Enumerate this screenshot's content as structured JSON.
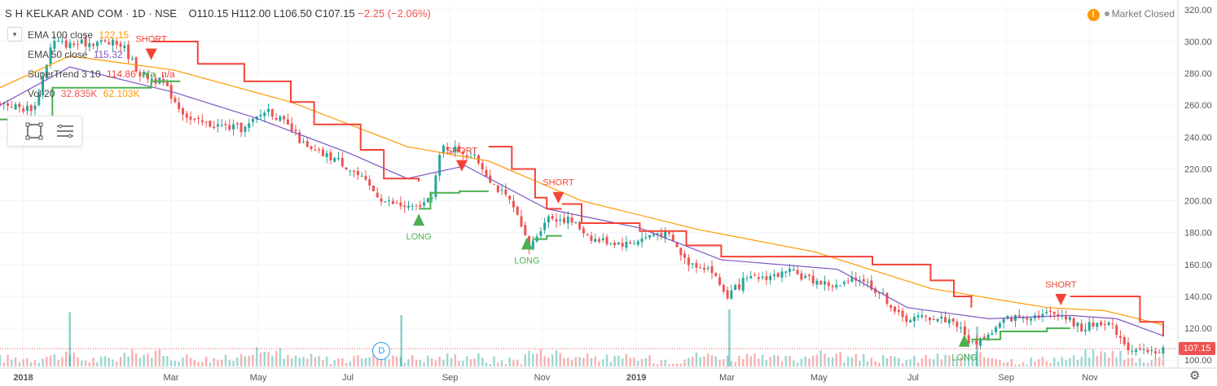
{
  "header": {
    "symbol": "S H KELKAR AND COM",
    "interval": "1D",
    "exchange": "NSE",
    "open": "O110.15",
    "high": "H112.00",
    "low": "L106.50",
    "close": "C107.15",
    "change": "−2.25 (−2.06%)"
  },
  "market_status": "Market Closed",
  "collapse_icon": "chevron-down-icon",
  "legend": {
    "ema100": {
      "label": "EMA 100 close",
      "value": "122.15",
      "color": "#ff9800"
    },
    "ema50": {
      "label": "EMA 50 close",
      "value": "115.32",
      "color": "#7e57c2"
    },
    "supertrend": {
      "label": "SuperTrend 3 10",
      "value": "114.86",
      "na1": "n/a",
      "na2": "n/a",
      "color_up": "#4caf50",
      "color_down": "#f44336"
    },
    "volume": {
      "label": "Vol 20",
      "value1": "32.835K",
      "value2": "62.103K"
    }
  },
  "toolbox": {
    "icon1": "square-select-icon",
    "icon2": "list-lines-icon"
  },
  "price_tag": "107.15",
  "settings_icon": "gear-icon",
  "dividend_badge": "D",
  "chart_data": {
    "type": "candlestick",
    "ylim": [
      95,
      323
    ],
    "y_ticks": [
      100,
      120,
      140,
      160,
      180,
      200,
      220,
      240,
      260,
      280,
      300,
      320
    ],
    "y_tick_labels": [
      "100.00",
      "120.00",
      "140.00",
      "160.00",
      "180.00",
      "200.00",
      "220.00",
      "240.00",
      "260.00",
      "280.00",
      "300.00",
      "320.00"
    ],
    "x_tick_labels": [
      {
        "label": "2018",
        "t": 0.02
      },
      {
        "label": "Mar",
        "t": 0.147
      },
      {
        "label": "May",
        "t": 0.222
      },
      {
        "label": "Jul",
        "t": 0.299
      },
      {
        "label": "Sep",
        "t": 0.387
      },
      {
        "label": "Nov",
        "t": 0.466
      },
      {
        "label": "2019",
        "t": 0.547
      },
      {
        "label": "Mar",
        "t": 0.625
      },
      {
        "label": "May",
        "t": 0.704
      },
      {
        "label": "Jul",
        "t": 0.785
      },
      {
        "label": "Sep",
        "t": 0.865
      },
      {
        "label": "Nov",
        "t": 0.937
      }
    ],
    "close_path": [
      [
        0.0,
        262
      ],
      [
        0.02,
        258
      ],
      [
        0.03,
        259
      ],
      [
        0.045,
        300
      ],
      [
        0.06,
        298
      ],
      [
        0.085,
        300
      ],
      [
        0.105,
        298
      ],
      [
        0.12,
        280
      ],
      [
        0.14,
        274
      ],
      [
        0.155,
        258
      ],
      [
        0.165,
        250
      ],
      [
        0.19,
        247
      ],
      [
        0.21,
        245
      ],
      [
        0.23,
        258
      ],
      [
        0.25,
        245
      ],
      [
        0.265,
        232
      ],
      [
        0.29,
        226
      ],
      [
        0.305,
        218
      ],
      [
        0.33,
        200
      ],
      [
        0.355,
        195
      ],
      [
        0.37,
        200
      ],
      [
        0.38,
        234
      ],
      [
        0.395,
        232
      ],
      [
        0.41,
        226
      ],
      [
        0.425,
        210
      ],
      [
        0.44,
        198
      ],
      [
        0.455,
        170
      ],
      [
        0.47,
        190
      ],
      [
        0.49,
        188
      ],
      [
        0.51,
        176
      ],
      [
        0.54,
        173
      ],
      [
        0.565,
        180
      ],
      [
        0.575,
        178
      ],
      [
        0.59,
        162
      ],
      [
        0.61,
        158
      ],
      [
        0.625,
        140
      ],
      [
        0.64,
        150
      ],
      [
        0.655,
        152
      ],
      [
        0.68,
        155
      ],
      [
        0.7,
        150
      ],
      [
        0.72,
        146
      ],
      [
        0.74,
        152
      ],
      [
        0.76,
        140
      ],
      [
        0.775,
        126
      ],
      [
        0.8,
        127
      ],
      [
        0.82,
        125
      ],
      [
        0.835,
        110
      ],
      [
        0.85,
        116
      ],
      [
        0.865,
        126
      ],
      [
        0.885,
        128
      ],
      [
        0.91,
        130
      ],
      [
        0.93,
        120
      ],
      [
        0.95,
        125
      ],
      [
        0.96,
        118
      ],
      [
        0.97,
        108
      ],
      [
        0.985,
        104
      ],
      [
        1.0,
        107.15
      ]
    ],
    "series": [
      {
        "name": "EMA 100 close",
        "color": "#ff9800",
        "values": [
          [
            0.0,
            271
          ],
          [
            0.06,
            291
          ],
          [
            0.15,
            282
          ],
          [
            0.25,
            262
          ],
          [
            0.35,
            234
          ],
          [
            0.42,
            225
          ],
          [
            0.5,
            200
          ],
          [
            0.6,
            182
          ],
          [
            0.7,
            168
          ],
          [
            0.8,
            145
          ],
          [
            0.9,
            133
          ],
          [
            0.95,
            131
          ],
          [
            1.0,
            122.15
          ]
        ]
      },
      {
        "name": "EMA 50 close",
        "color": "#7e57c2",
        "values": [
          [
            0.0,
            260
          ],
          [
            0.06,
            284
          ],
          [
            0.15,
            268
          ],
          [
            0.22,
            252
          ],
          [
            0.3,
            230
          ],
          [
            0.35,
            214
          ],
          [
            0.4,
            222
          ],
          [
            0.47,
            195
          ],
          [
            0.55,
            183
          ],
          [
            0.62,
            163
          ],
          [
            0.72,
            157
          ],
          [
            0.78,
            133
          ],
          [
            0.85,
            126
          ],
          [
            0.92,
            128
          ],
          [
            0.96,
            126
          ],
          [
            1.0,
            115.32
          ]
        ]
      },
      {
        "name": "SuperTrend 3 10",
        "color_up": "#4caf50",
        "color_down": "#f44336",
        "segments": [
          {
            "dir": "up",
            "values": [
              [
                0.0,
                251
              ],
              [
                0.03,
                251
              ],
              [
                0.045,
                271
              ],
              [
                0.13,
                275
              ],
              [
                0.155,
                275
              ]
            ]
          },
          {
            "dir": "down",
            "values": [
              [
                0.13,
                300
              ],
              [
                0.17,
                286
              ],
              [
                0.21,
                275
              ],
              [
                0.25,
                262
              ],
              [
                0.27,
                248
              ],
              [
                0.31,
                232
              ],
              [
                0.33,
                214
              ],
              [
                0.36,
                212
              ]
            ]
          },
          {
            "dir": "up",
            "values": [
              [
                0.36,
                195
              ],
              [
                0.37,
                205
              ],
              [
                0.395,
                206
              ],
              [
                0.42,
                206
              ]
            ]
          },
          {
            "dir": "down",
            "values": [
              [
                0.42,
                234
              ],
              [
                0.44,
                220
              ],
              [
                0.46,
                202
              ],
              [
                0.47,
                195
              ],
              [
                0.483,
                195
              ]
            ]
          },
          {
            "dir": "up",
            "values": [
              [
                0.458,
                176
              ],
              [
                0.47,
                178
              ],
              [
                0.483,
                178
              ]
            ]
          },
          {
            "dir": "down",
            "values": [
              [
                0.483,
                198
              ],
              [
                0.5,
                186
              ],
              [
                0.55,
                181
              ],
              [
                0.59,
                172
              ],
              [
                0.62,
                165
              ],
              [
                0.7,
                165
              ],
              [
                0.75,
                160
              ],
              [
                0.8,
                150
              ],
              [
                0.82,
                140
              ],
              [
                0.835,
                133
              ]
            ]
          },
          {
            "dir": "up",
            "values": [
              [
                0.835,
                113
              ],
              [
                0.86,
                118
              ],
              [
                0.9,
                120
              ],
              [
                0.92,
                120
              ]
            ]
          },
          {
            "dir": "down",
            "values": [
              [
                0.92,
                140
              ],
              [
                0.96,
                140
              ],
              [
                0.98,
                124
              ],
              [
                1.0,
                114.86
              ]
            ]
          }
        ]
      }
    ],
    "signals": [
      {
        "label": "SHORT",
        "t": 0.13,
        "price": 292,
        "dir": "down"
      },
      {
        "label": "SHORT",
        "t": 0.397,
        "price": 222,
        "dir": "down"
      },
      {
        "label": "LONG",
        "t": 0.36,
        "price": 188,
        "dir": "up"
      },
      {
        "label": "SHORT",
        "t": 0.48,
        "price": 202,
        "dir": "down"
      },
      {
        "label": "LONG",
        "t": 0.453,
        "price": 173,
        "dir": "up"
      },
      {
        "label": "LONG",
        "t": 0.829,
        "price": 112,
        "dir": "up"
      },
      {
        "label": "SHORT",
        "t": 0.912,
        "price": 138,
        "dir": "down"
      }
    ],
    "last_price": 107.15,
    "dividend_t": 0.328,
    "volume": {
      "levels": [
        0.3,
        0.5,
        0.2,
        0.7,
        0.4,
        0.25,
        0.9,
        0.35,
        0.2,
        0.6,
        0.3,
        0.45,
        0.15,
        0.8,
        0.4,
        0.3,
        0.2,
        0.55,
        0.35,
        0.25,
        0.65,
        0.3,
        0.2,
        0.4,
        0.5,
        0.15,
        0.3,
        0.75,
        0.25,
        0.45
      ],
      "spikes": [
        {
          "t": 0.06,
          "level": 0.95
        },
        {
          "t": 0.345,
          "level": 0.9
        },
        {
          "t": 0.627,
          "level": 1.0
        },
        {
          "t": 0.84,
          "level": 0.7
        }
      ]
    }
  }
}
